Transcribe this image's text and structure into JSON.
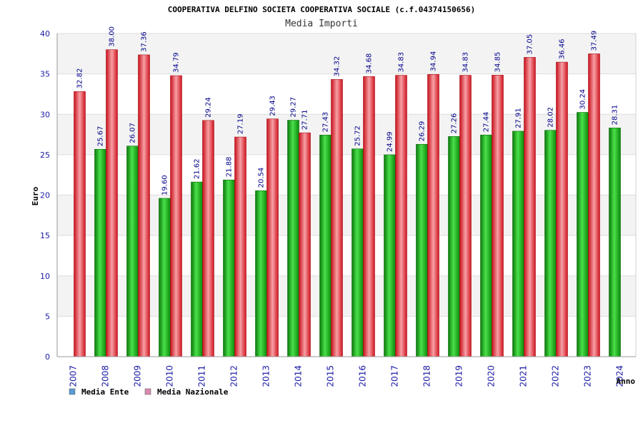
{
  "chart_data": {
    "type": "bar",
    "title": "COOPERATIVA DELFINO SOCIETA COOPERATIVA SOCIALE (c.f.04374150656)",
    "subtitle": "Media Importi",
    "xlabel": "Anno",
    "ylabel": "Euro",
    "ylim": [
      0,
      40
    ],
    "yticks": [
      0,
      5,
      10,
      15,
      20,
      25,
      30,
      35,
      40
    ],
    "grid": true,
    "legend_position": "bottom-left",
    "categories": [
      "2007",
      "2008",
      "2009",
      "2010",
      "2011",
      "2012",
      "2013",
      "2014",
      "2015",
      "2016",
      "2017",
      "2018",
      "2019",
      "2020",
      "2021",
      "2022",
      "2023",
      "2024"
    ],
    "series": [
      {
        "name": "Media Ente",
        "color": "#22bb22",
        "legend_color": "#5b9bd5",
        "values": [
          null,
          25.67,
          26.07,
          19.6,
          21.62,
          21.88,
          20.54,
          29.27,
          27.43,
          25.72,
          24.99,
          26.29,
          27.26,
          27.44,
          27.91,
          28.02,
          30.24,
          28.31
        ],
        "labels": [
          "",
          "25.67",
          "26.07",
          "19.60",
          "21.62",
          "21.88",
          "20.54",
          "29.27",
          "27.43",
          "25.72",
          "24.99",
          "26.29",
          "27.26",
          "27.44",
          "27.91",
          "28.02",
          "30.24",
          "28.31"
        ]
      },
      {
        "name": "Media Nazionale",
        "color": "#e8222a",
        "legend_color": "#d98ab0",
        "values": [
          32.82,
          38.0,
          37.36,
          34.79,
          29.24,
          27.19,
          29.43,
          27.71,
          34.32,
          34.68,
          34.83,
          34.94,
          34.83,
          34.85,
          37.05,
          36.46,
          37.49,
          null
        ],
        "labels": [
          "32.82",
          "38.00",
          "37.36",
          "34.79",
          "29.24",
          "27.19",
          "29.43",
          "27.71",
          "34.32",
          "34.68",
          "34.83",
          "34.94",
          "34.83",
          "34.85",
          "37.05",
          "36.46",
          "37.49",
          ""
        ]
      }
    ]
  }
}
